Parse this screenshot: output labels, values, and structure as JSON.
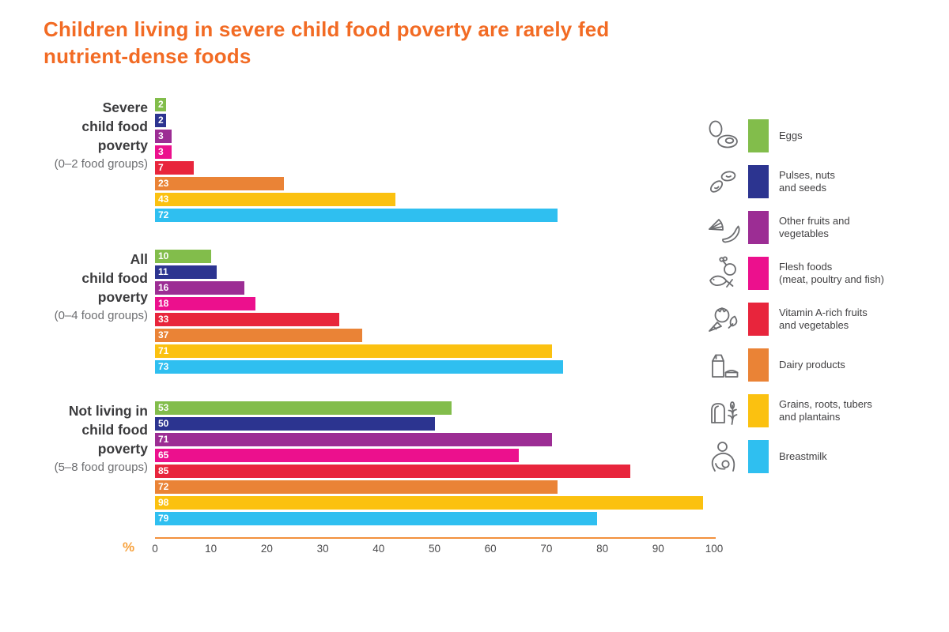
{
  "title": {
    "line1": "Children living in severe child food poverty are rarely fed",
    "line2": "nutrient-dense foods"
  },
  "chart_data": {
    "type": "bar",
    "orientation": "horizontal",
    "title": "Children living in severe child food poverty are rarely fed nutrient-dense foods",
    "xlabel": "%",
    "xlim": [
      0,
      100
    ],
    "xticks": [
      0,
      10,
      20,
      30,
      40,
      50,
      60,
      70,
      80,
      90,
      100
    ],
    "grid": false,
    "legend_position": "right",
    "value_labels": "inside-start",
    "series": [
      {
        "name": "Eggs",
        "color": "#82BD4B",
        "icon": "eggs-icon"
      },
      {
        "name": "Pulses, nuts and seeds",
        "color": "#2C3490",
        "icon": "pulses-icon"
      },
      {
        "name": "Other fruits and vegetables",
        "color": "#9C2D94",
        "icon": "other-fruits-icon"
      },
      {
        "name": "Flesh foods (meat, poultry and fish)",
        "color": "#EC108D",
        "icon": "flesh-foods-icon"
      },
      {
        "name": "Vitamin A-rich fruits and vegetables",
        "color": "#E8253C",
        "icon": "vitamin-a-icon"
      },
      {
        "name": "Dairy products",
        "color": "#EA8336",
        "icon": "dairy-icon"
      },
      {
        "name": "Grains, roots, tubers and plantains",
        "color": "#FBC110",
        "icon": "grains-icon"
      },
      {
        "name": "Breastmilk",
        "color": "#2FBFF0",
        "icon": "breastmilk-icon"
      }
    ],
    "groups": [
      {
        "label_lines": [
          "Severe",
          "child food",
          "poverty"
        ],
        "sublabel": "(0–2 food groups)",
        "values": [
          2,
          2,
          3,
          3,
          7,
          23,
          43,
          72
        ]
      },
      {
        "label_lines": [
          "All",
          "child food",
          "poverty"
        ],
        "sublabel": "(0–4 food groups)",
        "values": [
          10,
          11,
          16,
          18,
          33,
          37,
          71,
          73
        ]
      },
      {
        "label_lines": [
          "Not living in",
          "child food",
          "poverty"
        ],
        "sublabel": "(5–8 food groups)",
        "values": [
          53,
          50,
          71,
          65,
          85,
          72,
          98,
          79
        ]
      }
    ]
  },
  "legend": {
    "items": [
      {
        "lines": [
          "Eggs"
        ],
        "color": "#82BD4B",
        "icon": "eggs-icon"
      },
      {
        "lines": [
          "Pulses, nuts",
          "and seeds"
        ],
        "color": "#2C3490",
        "icon": "pulses-icon"
      },
      {
        "lines": [
          "Other fruits and",
          "vegetables"
        ],
        "color": "#9C2D94",
        "icon": "other-fruits-icon"
      },
      {
        "lines": [
          "Flesh foods",
          "(meat, poultry and fish)"
        ],
        "color": "#EC108D",
        "icon": "flesh-foods-icon"
      },
      {
        "lines": [
          "Vitamin A-rich fruits",
          "and vegetables"
        ],
        "color": "#E8253C",
        "icon": "vitamin-a-icon"
      },
      {
        "lines": [
          "Dairy products"
        ],
        "color": "#EA8336",
        "icon": "dairy-icon"
      },
      {
        "lines": [
          "Grains, roots, tubers",
          "and plantains"
        ],
        "color": "#FBC110",
        "icon": "grains-icon"
      },
      {
        "lines": [
          "Breastmilk"
        ],
        "color": "#2FBFF0",
        "icon": "breastmilk-icon"
      }
    ]
  },
  "colors": {
    "title": "#F26B24",
    "axis_line": "#F2913D",
    "axis_unit": "#F7A23E",
    "tick_text": "#4A4A4C",
    "group_label": "#3B3B3D",
    "group_sublabel": "#6D6E71"
  }
}
